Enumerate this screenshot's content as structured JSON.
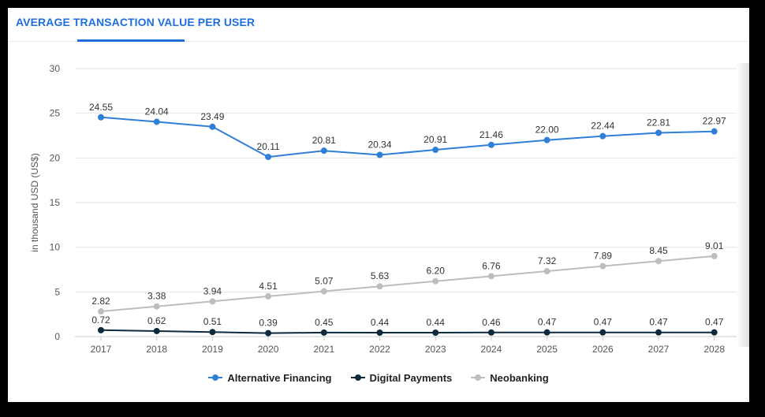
{
  "header": {
    "title": "AVERAGE TRANSACTION VALUE PER USER"
  },
  "chart_data": {
    "type": "line",
    "title": "AVERAGE TRANSACTION VALUE PER USER",
    "xlabel": "",
    "ylabel": "in thousand USD (US$)",
    "ylim": [
      0,
      30
    ],
    "yticks": [
      "0",
      "5",
      "10",
      "15",
      "20",
      "25",
      "30"
    ],
    "grid": true,
    "legend_position": "bottom-center",
    "categories": [
      "2017",
      "2018",
      "2019",
      "2020",
      "2021",
      "2022",
      "2023",
      "2024",
      "2025",
      "2026",
      "2027",
      "2028"
    ],
    "series": [
      {
        "name": "Alternative Financing",
        "color": "#2f7ed8",
        "values": [
          24.55,
          24.04,
          23.49,
          20.11,
          20.81,
          20.34,
          20.91,
          21.46,
          22.0,
          22.44,
          22.81,
          22.97
        ],
        "labels": [
          "24.55",
          "24.04",
          "23.49",
          "20.11",
          "20.81",
          "20.34",
          "20.91",
          "21.46",
          "22.00",
          "22.44",
          "22.81",
          "22.97"
        ]
      },
      {
        "name": "Digital Payments",
        "color": "#0d2a3f",
        "values": [
          0.72,
          0.62,
          0.51,
          0.39,
          0.45,
          0.44,
          0.44,
          0.46,
          0.47,
          0.47,
          0.47,
          0.47
        ],
        "labels": [
          "0.72",
          "0.62",
          "0.51",
          "0.39",
          "0.45",
          "0.44",
          "0.44",
          "0.46",
          "0.47",
          "0.47",
          "0.47",
          "0.47"
        ]
      },
      {
        "name": "Neobanking",
        "color": "#bdbdbd",
        "values": [
          2.82,
          3.38,
          3.94,
          4.51,
          5.07,
          5.63,
          6.2,
          6.76,
          7.32,
          7.89,
          8.45,
          9.01
        ],
        "labels": [
          "2.82",
          "3.38",
          "3.94",
          "4.51",
          "5.07",
          "5.63",
          "6.20",
          "6.76",
          "7.32",
          "7.89",
          "8.45",
          "9.01"
        ]
      }
    ]
  }
}
